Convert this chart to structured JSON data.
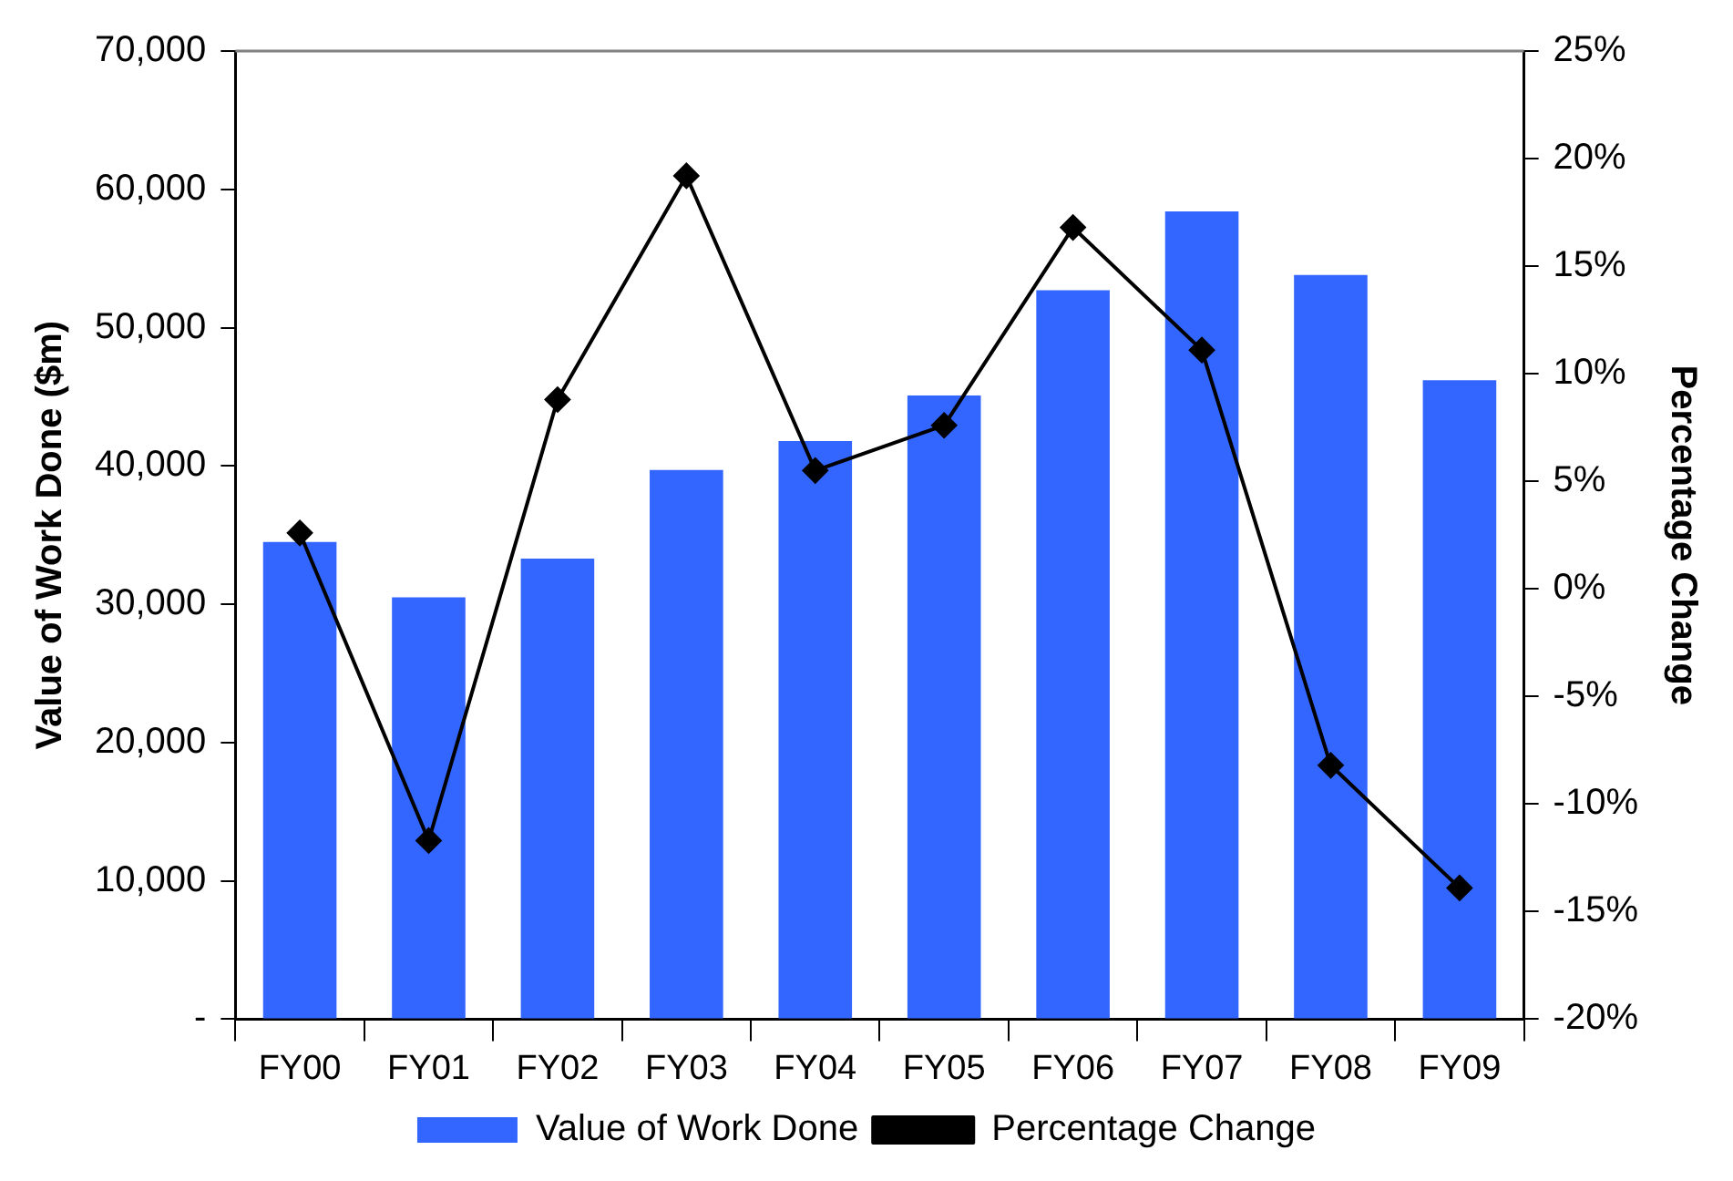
{
  "chart_data": {
    "type": "bar",
    "categories": [
      "FY00",
      "FY01",
      "FY02",
      "FY03",
      "FY04",
      "FY05",
      "FY06",
      "FY07",
      "FY08",
      "FY09"
    ],
    "series": [
      {
        "name": "Value of Work Done",
        "color": "#3366ff",
        "values": [
          34500,
          30500,
          33300,
          39700,
          41800,
          45100,
          52700,
          58400,
          53800,
          46200
        ]
      },
      {
        "name": "Percentage Change",
        "type": "line",
        "axis": "y2",
        "color": "#000000",
        "marker": "diamond",
        "values": [
          2.6,
          -11.7,
          8.8,
          19.2,
          5.5,
          7.6,
          16.8,
          11.1,
          -8.2,
          -13.9
        ]
      }
    ],
    "ylabel": "Value of Work Done ($m)",
    "y2label": "Percentage Change",
    "ylim": [
      0,
      70000
    ],
    "yticks": [
      {
        "value": 0,
        "label": "-"
      },
      {
        "value": 10000,
        "label": "10,000"
      },
      {
        "value": 20000,
        "label": "20,000"
      },
      {
        "value": 30000,
        "label": "30,000"
      },
      {
        "value": 40000,
        "label": "40,000"
      },
      {
        "value": 50000,
        "label": "50,000"
      },
      {
        "value": 60000,
        "label": "60,000"
      },
      {
        "value": 70000,
        "label": "70,000"
      }
    ],
    "y2lim": [
      -20,
      25
    ],
    "y2ticks": [
      {
        "value": -20,
        "label": "-20%"
      },
      {
        "value": -15,
        "label": "-15%"
      },
      {
        "value": -10,
        "label": "-10%"
      },
      {
        "value": -5,
        "label": "-5%"
      },
      {
        "value": 0,
        "label": "0%"
      },
      {
        "value": 5,
        "label": "5%"
      },
      {
        "value": 10,
        "label": "10%"
      },
      {
        "value": 15,
        "label": "15%"
      },
      {
        "value": 20,
        "label": "20%"
      },
      {
        "value": 25,
        "label": "25%"
      }
    ],
    "grid": false,
    "legend": "bottom"
  }
}
